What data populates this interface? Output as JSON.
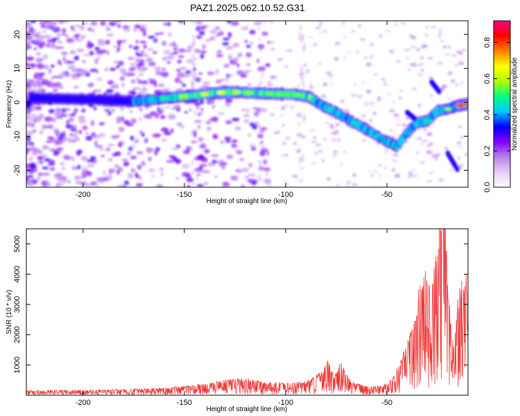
{
  "title": "PAZ1.2025.062.10.52.G31",
  "chart_data": [
    {
      "type": "heatmap",
      "xlabel": "Height of straight line (km)",
      "ylabel": "Frequency (Hz)",
      "xlim": [
        -228,
        -10
      ],
      "ylim": [
        -25,
        24
      ],
      "xticks": [
        -200,
        -150,
        -100,
        -50
      ],
      "yticks": [
        -20,
        -10,
        0,
        10,
        20
      ],
      "colorbar": {
        "label": "Normalized spectral amplitude",
        "range": [
          0,
          0.92
        ],
        "ticks": [
          0.0,
          0.2,
          0.4,
          0.6,
          0.8
        ],
        "colormap": [
          "#ffffff",
          "#e6ccf7",
          "#b880ec",
          "#8000ff",
          "#0000ff",
          "#00c8ff",
          "#00ff80",
          "#b0ff00",
          "#ffff00",
          "#ff7f00",
          "#ff0000",
          "#ff0080"
        ]
      },
      "ridge": [
        [
          -226,
          1.2
        ],
        [
          -210,
          1.0
        ],
        [
          -195,
          0.8
        ],
        [
          -185,
          0.5
        ],
        [
          -175,
          0.3
        ],
        [
          -165,
          0.8
        ],
        [
          -155,
          1.5
        ],
        [
          -145,
          2.0
        ],
        [
          -135,
          2.8
        ],
        [
          -125,
          3.0
        ],
        [
          -115,
          2.7
        ],
        [
          -105,
          2.5
        ],
        [
          -95,
          2.3
        ],
        [
          -88,
          1.5
        ],
        [
          -82,
          -1.0
        ],
        [
          -75,
          -3.0
        ],
        [
          -68,
          -5.5
        ],
        [
          -60,
          -8.0
        ],
        [
          -52,
          -11.0
        ],
        [
          -45,
          -13.0
        ],
        [
          -40,
          -9.0
        ],
        [
          -35,
          -6.0
        ],
        [
          -30,
          -5.5
        ],
        [
          -25,
          -2.5
        ],
        [
          -20,
          -2.0
        ],
        [
          -15,
          -1.0
        ],
        [
          -10,
          -0.5
        ]
      ]
    },
    {
      "type": "line",
      "xlabel": "Height of straight line (km)",
      "ylabel": "SNR (10 * v/v)",
      "xlim": [
        -228,
        -10
      ],
      "ylim": [
        0,
        5500
      ],
      "xticks": [
        -200,
        -150,
        -100,
        -50
      ],
      "yticks": [
        1000,
        2000,
        3000,
        4000,
        5000
      ],
      "line_color": "#ee3333",
      "envelope": [
        [
          -228,
          120
        ],
        [
          -200,
          130
        ],
        [
          -180,
          150
        ],
        [
          -160,
          180
        ],
        [
          -150,
          230
        ],
        [
          -140,
          280
        ],
        [
          -130,
          380
        ],
        [
          -120,
          430
        ],
        [
          -110,
          330
        ],
        [
          -100,
          300
        ],
        [
          -90,
          340
        ],
        [
          -82,
          600
        ],
        [
          -79,
          900
        ],
        [
          -76,
          450
        ],
        [
          -73,
          850
        ],
        [
          -68,
          350
        ],
        [
          -60,
          220
        ],
        [
          -52,
          240
        ],
        [
          -47,
          450
        ],
        [
          -43,
          900
        ],
        [
          -38,
          1700
        ],
        [
          -34,
          2700
        ],
        [
          -31,
          3100
        ],
        [
          -28,
          2600
        ],
        [
          -26,
          3500
        ],
        [
          -24,
          4700
        ],
        [
          -22,
          5300
        ],
        [
          -20,
          2800
        ],
        [
          -17,
          1100
        ],
        [
          -15,
          2500
        ],
        [
          -12,
          3100
        ],
        [
          -10,
          3000
        ]
      ]
    }
  ]
}
